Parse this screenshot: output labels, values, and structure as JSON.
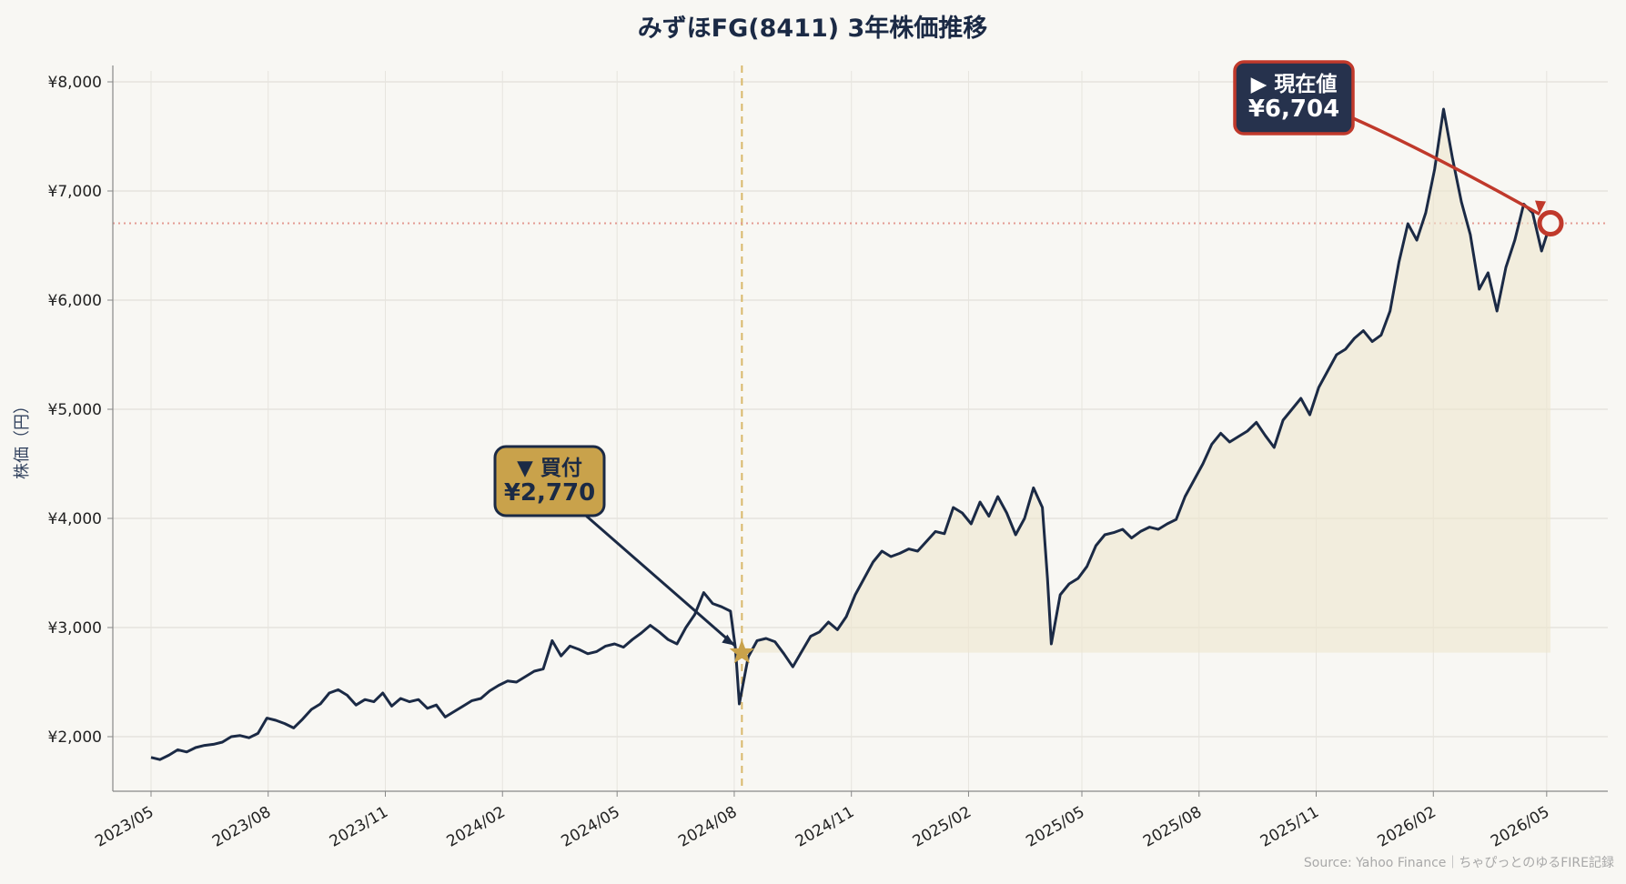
{
  "chart_data": {
    "type": "line",
    "title": "みずほFG(8411) 3年株価推移",
    "xlabel": "",
    "ylabel": "株価（円）",
    "xlim": [
      "2023-04-01",
      "2026-06-18"
    ],
    "ylim": [
      1500,
      8100
    ],
    "y_ticks": [
      2000,
      3000,
      4000,
      5000,
      6000,
      7000,
      8000
    ],
    "y_tick_labels": [
      "¥2,000",
      "¥3,000",
      "¥4,000",
      "¥5,000",
      "¥6,000",
      "¥7,000",
      "¥8,000"
    ],
    "x_ticks": [
      "2023-05-01",
      "2023-08-01",
      "2023-11-01",
      "2024-02-01",
      "2024-05-01",
      "2024-08-01",
      "2024-11-01",
      "2025-02-01",
      "2025-05-01",
      "2025-08-01",
      "2025-11-01",
      "2026-02-01",
      "2026-05-01"
    ],
    "x_tick_labels": [
      "2023/05",
      "2023/08",
      "2023/11",
      "2024/02",
      "2024/05",
      "2024/08",
      "2024/11",
      "2025/02",
      "2025/05",
      "2025/08",
      "2025/11",
      "2026/02",
      "2026/05"
    ],
    "grid": true,
    "series": [
      {
        "color": "#1b2a45",
        "points": [
          [
            "2023-05-01",
            1810
          ],
          [
            "2023-05-08",
            1790
          ],
          [
            "2023-05-15",
            1830
          ],
          [
            "2023-05-22",
            1880
          ],
          [
            "2023-05-29",
            1860
          ],
          [
            "2023-06-05",
            1900
          ],
          [
            "2023-06-12",
            1920
          ],
          [
            "2023-06-19",
            1930
          ],
          [
            "2023-06-26",
            1950
          ],
          [
            "2023-07-03",
            2000
          ],
          [
            "2023-07-10",
            2010
          ],
          [
            "2023-07-17",
            1990
          ],
          [
            "2023-07-24",
            2030
          ],
          [
            "2023-07-31",
            2170
          ],
          [
            "2023-08-07",
            2150
          ],
          [
            "2023-08-14",
            2120
          ],
          [
            "2023-08-21",
            2080
          ],
          [
            "2023-08-28",
            2160
          ],
          [
            "2023-09-04",
            2250
          ],
          [
            "2023-09-11",
            2300
          ],
          [
            "2023-09-18",
            2400
          ],
          [
            "2023-09-25",
            2430
          ],
          [
            "2023-10-02",
            2380
          ],
          [
            "2023-10-09",
            2290
          ],
          [
            "2023-10-16",
            2340
          ],
          [
            "2023-10-23",
            2320
          ],
          [
            "2023-10-30",
            2400
          ],
          [
            "2023-11-06",
            2280
          ],
          [
            "2023-11-13",
            2350
          ],
          [
            "2023-11-20",
            2320
          ],
          [
            "2023-11-27",
            2340
          ],
          [
            "2023-12-04",
            2260
          ],
          [
            "2023-12-11",
            2290
          ],
          [
            "2023-12-18",
            2180
          ],
          [
            "2023-12-25",
            2230
          ],
          [
            "2024-01-08",
            2330
          ],
          [
            "2024-01-15",
            2350
          ],
          [
            "2024-01-22",
            2420
          ],
          [
            "2024-01-29",
            2470
          ],
          [
            "2024-02-05",
            2510
          ],
          [
            "2024-02-12",
            2500
          ],
          [
            "2024-02-19",
            2550
          ],
          [
            "2024-02-26",
            2600
          ],
          [
            "2024-03-04",
            2620
          ],
          [
            "2024-03-11",
            2880
          ],
          [
            "2024-03-18",
            2740
          ],
          [
            "2024-03-25",
            2830
          ],
          [
            "2024-04-01",
            2800
          ],
          [
            "2024-04-08",
            2760
          ],
          [
            "2024-04-15",
            2780
          ],
          [
            "2024-04-22",
            2830
          ],
          [
            "2024-04-29",
            2850
          ],
          [
            "2024-05-06",
            2820
          ],
          [
            "2024-05-13",
            2890
          ],
          [
            "2024-05-20",
            2950
          ],
          [
            "2024-05-27",
            3020
          ],
          [
            "2024-06-03",
            2960
          ],
          [
            "2024-06-10",
            2890
          ],
          [
            "2024-06-17",
            2850
          ],
          [
            "2024-06-24",
            3000
          ],
          [
            "2024-07-01",
            3120
          ],
          [
            "2024-07-08",
            3320
          ],
          [
            "2024-07-15",
            3220
          ],
          [
            "2024-07-22",
            3190
          ],
          [
            "2024-07-29",
            3150
          ],
          [
            "2024-08-02",
            2800
          ],
          [
            "2024-08-05",
            2300
          ],
          [
            "2024-08-12",
            2730
          ],
          [
            "2024-08-19",
            2880
          ],
          [
            "2024-08-26",
            2900
          ],
          [
            "2024-09-02",
            2870
          ],
          [
            "2024-09-09",
            2760
          ],
          [
            "2024-09-16",
            2640
          ],
          [
            "2024-09-23",
            2780
          ],
          [
            "2024-09-30",
            2920
          ],
          [
            "2024-10-07",
            2960
          ],
          [
            "2024-10-14",
            3050
          ],
          [
            "2024-10-21",
            2980
          ],
          [
            "2024-10-28",
            3100
          ],
          [
            "2024-11-04",
            3300
          ],
          [
            "2024-11-11",
            3450
          ],
          [
            "2024-11-18",
            3600
          ],
          [
            "2024-11-25",
            3700
          ],
          [
            "2024-12-02",
            3650
          ],
          [
            "2024-12-09",
            3680
          ],
          [
            "2024-12-16",
            3720
          ],
          [
            "2024-12-23",
            3700
          ],
          [
            "2025-01-06",
            3880
          ],
          [
            "2025-01-13",
            3860
          ],
          [
            "2025-01-20",
            4100
          ],
          [
            "2025-01-27",
            4050
          ],
          [
            "2025-02-03",
            3950
          ],
          [
            "2025-02-10",
            4150
          ],
          [
            "2025-02-17",
            4020
          ],
          [
            "2025-02-24",
            4200
          ],
          [
            "2025-03-03",
            4050
          ],
          [
            "2025-03-10",
            3850
          ],
          [
            "2025-03-17",
            4000
          ],
          [
            "2025-03-24",
            4280
          ],
          [
            "2025-03-31",
            4100
          ],
          [
            "2025-04-04",
            3450
          ],
          [
            "2025-04-07",
            2850
          ],
          [
            "2025-04-14",
            3300
          ],
          [
            "2025-04-21",
            3400
          ],
          [
            "2025-04-28",
            3450
          ],
          [
            "2025-05-05",
            3560
          ],
          [
            "2025-05-12",
            3750
          ],
          [
            "2025-05-19",
            3850
          ],
          [
            "2025-05-26",
            3870
          ],
          [
            "2025-06-02",
            3900
          ],
          [
            "2025-06-09",
            3820
          ],
          [
            "2025-06-16",
            3880
          ],
          [
            "2025-06-23",
            3920
          ],
          [
            "2025-06-30",
            3900
          ],
          [
            "2025-07-07",
            3950
          ],
          [
            "2025-07-14",
            3990
          ],
          [
            "2025-07-21",
            4200
          ],
          [
            "2025-07-28",
            4350
          ],
          [
            "2025-08-04",
            4500
          ],
          [
            "2025-08-11",
            4680
          ],
          [
            "2025-08-18",
            4780
          ],
          [
            "2025-08-25",
            4700
          ],
          [
            "2025-09-01",
            4750
          ],
          [
            "2025-09-08",
            4800
          ],
          [
            "2025-09-15",
            4880
          ],
          [
            "2025-09-22",
            4760
          ],
          [
            "2025-09-29",
            4650
          ],
          [
            "2025-10-06",
            4900
          ],
          [
            "2025-10-13",
            5000
          ],
          [
            "2025-10-20",
            5100
          ],
          [
            "2025-10-27",
            4950
          ],
          [
            "2025-11-03",
            5200
          ],
          [
            "2025-11-10",
            5350
          ],
          [
            "2025-11-17",
            5500
          ],
          [
            "2025-11-24",
            5550
          ],
          [
            "2025-12-01",
            5650
          ],
          [
            "2025-12-08",
            5720
          ],
          [
            "2025-12-15",
            5620
          ],
          [
            "2025-12-22",
            5680
          ],
          [
            "2025-12-29",
            5900
          ],
          [
            "2026-01-05",
            6350
          ],
          [
            "2026-01-12",
            6700
          ],
          [
            "2026-01-19",
            6550
          ],
          [
            "2026-01-26",
            6800
          ],
          [
            "2026-02-02",
            7200
          ],
          [
            "2026-02-09",
            7750
          ],
          [
            "2026-02-16",
            7300
          ],
          [
            "2026-02-23",
            6900
          ],
          [
            "2026-03-02",
            6600
          ],
          [
            "2026-03-09",
            6100
          ],
          [
            "2026-03-16",
            6250
          ],
          [
            "2026-03-23",
            5900
          ],
          [
            "2026-03-30",
            6300
          ],
          [
            "2026-04-06",
            6550
          ],
          [
            "2026-04-13",
            6880
          ],
          [
            "2026-04-20",
            6800
          ],
          [
            "2026-04-27",
            6450
          ],
          [
            "2026-05-04",
            6704
          ]
        ]
      }
    ],
    "purchase_marker": {
      "date": "2024-08-07",
      "price": 2770,
      "label": "▼ 買付",
      "value_label": "¥2,770"
    },
    "current_marker": {
      "date": "2026-05-04",
      "price": 6704,
      "label": "▶ 現在値",
      "value_label": "¥6,704"
    },
    "source": "Source: Yahoo Finance｜ちゃぴっとのゆるFIRE記録"
  }
}
